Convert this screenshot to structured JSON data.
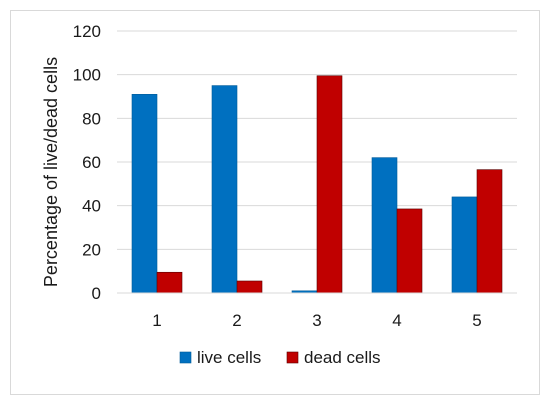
{
  "chart_data": {
    "type": "bar",
    "title": "",
    "xlabel": "",
    "ylabel": "Percentage of live/dead cells",
    "categories": [
      "1",
      "2",
      "3",
      "4",
      "5"
    ],
    "series": [
      {
        "name": "live cells",
        "values": [
          91,
          95,
          1,
          62,
          44
        ],
        "color": "#0070c0"
      },
      {
        "name": "dead cells",
        "values": [
          9.5,
          5.5,
          99.5,
          38.5,
          56.5
        ],
        "color": "#c00000"
      }
    ],
    "ylim": [
      0,
      120
    ],
    "yticks": [
      "0",
      "20",
      "40",
      "60",
      "80",
      "100",
      "120"
    ],
    "grid": true,
    "legend_position": "bottom"
  }
}
